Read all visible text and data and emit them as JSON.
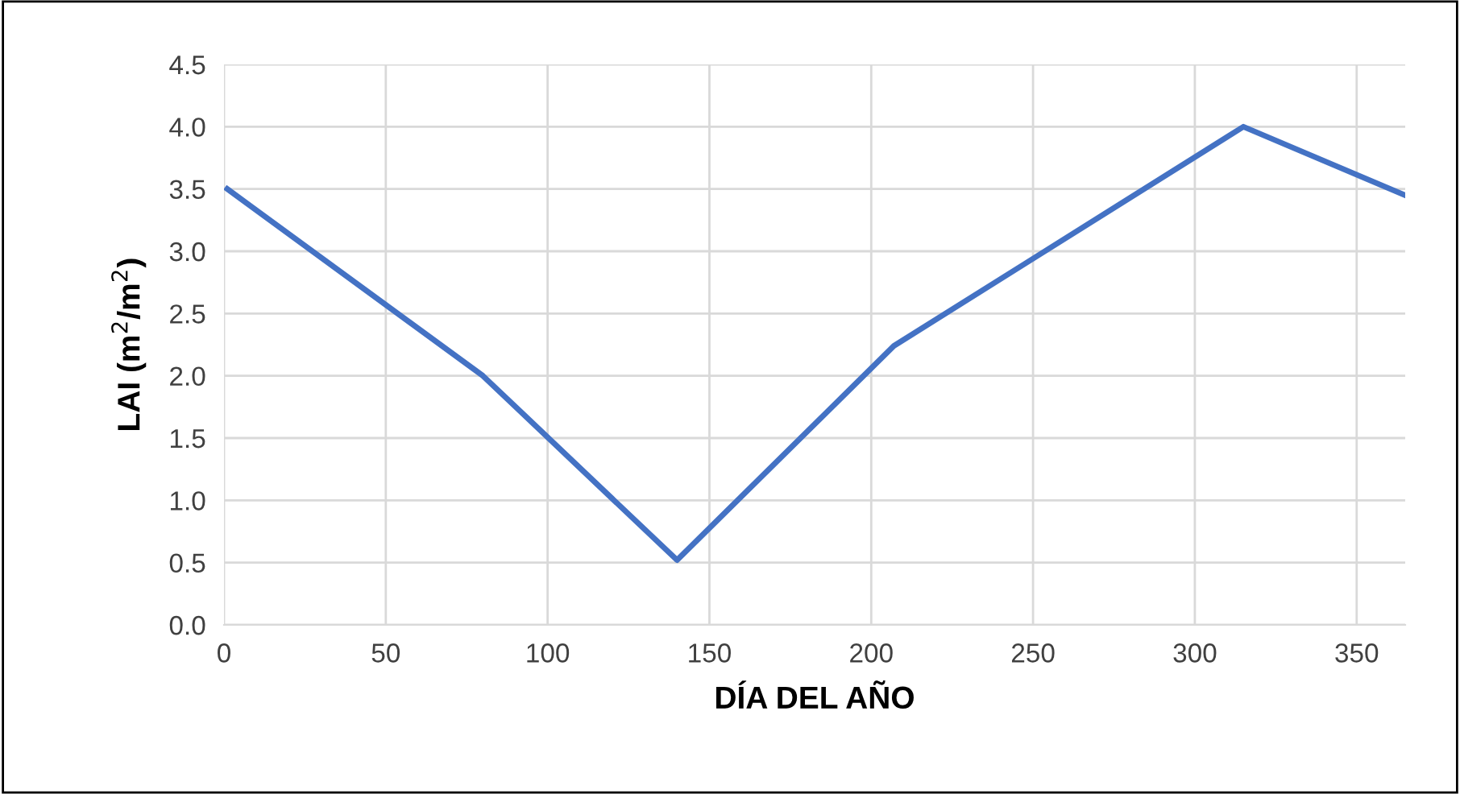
{
  "chart_data": {
    "type": "line",
    "xlabel": "DÍA DEL AÑO",
    "ylabel": "LAI (m$^{2}$/m$^{2}$)",
    "x": [
      1,
      80,
      140,
      207,
      315,
      365
    ],
    "series": [
      {
        "color": "#4472c4",
        "values": [
          3.5,
          2.0,
          0.52,
          2.24,
          4.0,
          3.45
        ]
      }
    ],
    "xlim": [
      0,
      365
    ],
    "xticks": [
      0,
      50,
      100,
      150,
      200,
      250,
      300,
      350
    ],
    "ylim": [
      0,
      4.5
    ],
    "yticks": [
      {
        "value": 0,
        "label": "0.0"
      },
      {
        "value": 0.5,
        "label": "0.5"
      },
      {
        "value": 1,
        "label": "1.0"
      },
      {
        "value": 1.5,
        "label": "1.5"
      },
      {
        "value": 2,
        "label": "2.0"
      },
      {
        "value": 2.5,
        "label": "2.5"
      },
      {
        "value": 3,
        "label": "3.0"
      },
      {
        "value": 3.5,
        "label": "3.5"
      },
      {
        "value": 4,
        "label": "4.0"
      },
      {
        "value": 4.5,
        "label": "4.5"
      }
    ],
    "grid": true,
    "marker": "none",
    "line_style": "solid"
  }
}
